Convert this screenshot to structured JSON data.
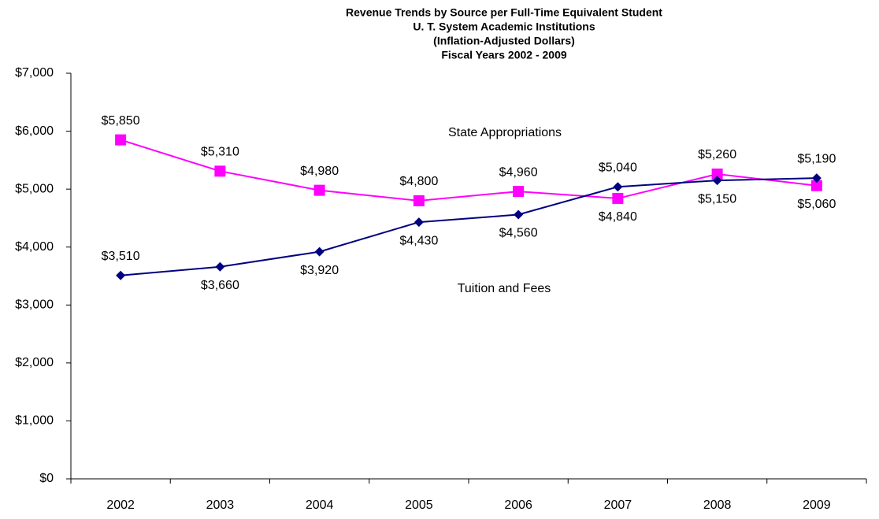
{
  "chart_data": {
    "type": "line",
    "title": [
      "Revenue Trends by Source per Full-Time Equivalent Student",
      "U. T. System Academic Institutions",
      "(Inflation-Adjusted Dollars)",
      "Fiscal Years 2002 - 2009"
    ],
    "categories": [
      "2002",
      "2003",
      "2004",
      "2005",
      "2006",
      "2007",
      "2008",
      "2009"
    ],
    "series": [
      {
        "name": "State Appropriations",
        "color": "#ff00ff",
        "marker": "square",
        "values": [
          5850,
          5310,
          4980,
          4800,
          4960,
          4840,
          5260,
          5060
        ],
        "value_labels": [
          "$5,850",
          "$5,310",
          "$4,980",
          "$4,800",
          "$4,960",
          "$4,840",
          "$5,260",
          "$5,060"
        ]
      },
      {
        "name": "Tuition and Fees",
        "color": "#000080",
        "marker": "diamond",
        "values": [
          3510,
          3660,
          3920,
          4430,
          4560,
          5040,
          5150,
          5190
        ],
        "value_labels": [
          "$3,510",
          "$3,660",
          "$3,920",
          "$4,430",
          "$4,560",
          "$5,040",
          "$5,150",
          "$5,190"
        ]
      }
    ],
    "ylim": [
      0,
      7000
    ],
    "yticks": [
      {
        "value": 0,
        "label": "$0"
      },
      {
        "value": 1000,
        "label": "$1,000"
      },
      {
        "value": 2000,
        "label": "$2,000"
      },
      {
        "value": 3000,
        "label": "$3,000"
      },
      {
        "value": 4000,
        "label": "$4,000"
      },
      {
        "value": 5000,
        "label": "$5,000"
      },
      {
        "value": 6000,
        "label": "$6,000"
      },
      {
        "value": 7000,
        "label": "$7,000"
      }
    ],
    "grid": false
  }
}
